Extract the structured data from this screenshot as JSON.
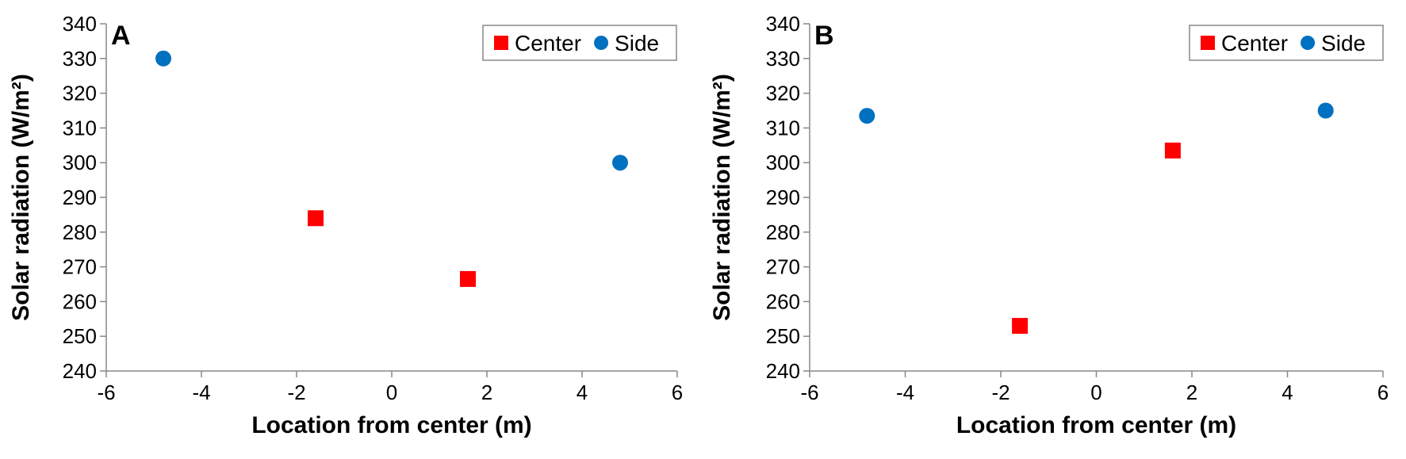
{
  "chart_data": [
    {
      "type": "scatter",
      "panel_label": "A",
      "xlabel": "Location from center (m)",
      "ylabel": "Solar radiation (W/m²)",
      "xlim": [
        -6,
        6
      ],
      "ylim": [
        240,
        340
      ],
      "xticks": [
        -6,
        -4,
        -2,
        0,
        2,
        4,
        6
      ],
      "yticks": [
        240,
        250,
        260,
        270,
        280,
        290,
        300,
        310,
        320,
        330,
        340
      ],
      "grid": false,
      "legend_position": "top-right",
      "series": [
        {
          "name": "Center",
          "marker": "square",
          "color": "#ff0000",
          "x": [
            -1.6,
            1.6
          ],
          "y": [
            284,
            266.5
          ]
        },
        {
          "name": "Side",
          "marker": "circle",
          "color": "#0070c0",
          "x": [
            -4.8,
            4.8
          ],
          "y": [
            330,
            300
          ]
        }
      ]
    },
    {
      "type": "scatter",
      "panel_label": "B",
      "xlabel": "Location from center (m)",
      "ylabel": "Solar radiation (W/m²)",
      "xlim": [
        -6,
        6
      ],
      "ylim": [
        240,
        340
      ],
      "xticks": [
        -6,
        -4,
        -2,
        0,
        2,
        4,
        6
      ],
      "yticks": [
        240,
        250,
        260,
        270,
        280,
        290,
        300,
        310,
        320,
        330,
        340
      ],
      "grid": false,
      "legend_position": "top-right",
      "series": [
        {
          "name": "Center",
          "marker": "square",
          "color": "#ff0000",
          "x": [
            -1.6,
            1.6
          ],
          "y": [
            253,
            303.5
          ]
        },
        {
          "name": "Side",
          "marker": "circle",
          "color": "#0070c0",
          "x": [
            -4.8,
            4.8
          ],
          "y": [
            313.5,
            315
          ]
        }
      ]
    }
  ]
}
